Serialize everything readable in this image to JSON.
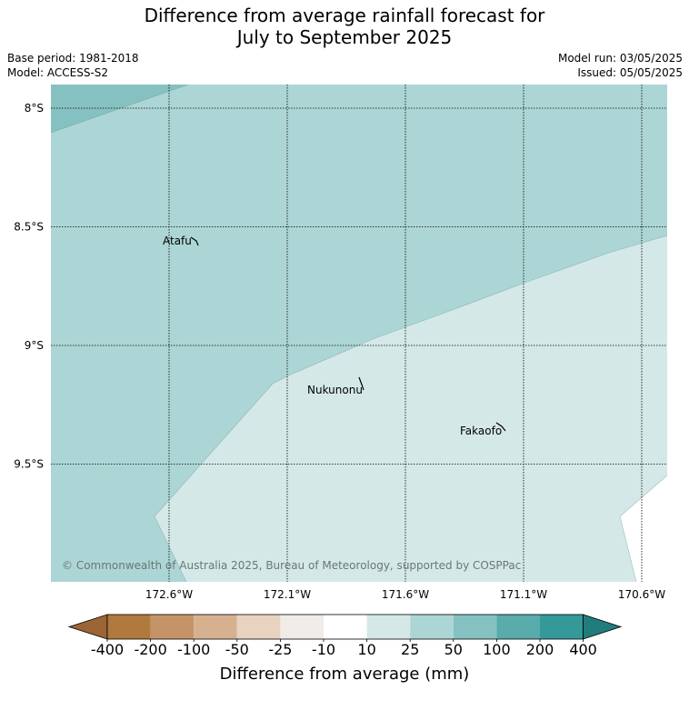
{
  "title_line1": "Difference from average rainfall forecast for",
  "title_line2": "July to September 2025",
  "meta": {
    "base_period": "Base period: 1981-2018",
    "model": "Model: ACCESS-S2",
    "model_run": "Model run: 03/05/2025",
    "issued": "Issued: 05/05/2025"
  },
  "map": {
    "lat_labels": [
      {
        "lat": -8.0,
        "label": "8°S"
      },
      {
        "lat": -8.5,
        "label": "8.5°S"
      },
      {
        "lat": -9.0,
        "label": "9°S"
      },
      {
        "lat": -9.5,
        "label": "9.5°S"
      }
    ],
    "lon_labels": [
      {
        "lon": -172.6,
        "label": "172.6°W"
      },
      {
        "lon": -172.1,
        "label": "172.1°W"
      },
      {
        "lon": -171.6,
        "label": "171.6°W"
      },
      {
        "lon": -171.1,
        "label": "171.1°W"
      },
      {
        "lon": -170.6,
        "label": "170.6°W"
      }
    ],
    "places": [
      {
        "name": "Atafu",
        "lon": -172.52,
        "lat": -8.55
      },
      {
        "name": "Nukunonu",
        "lon": -171.84,
        "lat": -9.16
      },
      {
        "name": "Fakaofo",
        "lon": -171.23,
        "lat": -9.36
      }
    ],
    "copyright": "© Commonwealth of Australia 2025, Bureau of Meteorology, supported by COSPPac"
  },
  "colorbar": {
    "title": "Difference from average (mm)",
    "tick_labels": [
      "-400",
      "-200",
      "-100",
      "-50",
      "-25",
      "-10",
      "10",
      "25",
      "50",
      "100",
      "200",
      "400"
    ],
    "colors": {
      "under": "#9c6535",
      "bins": [
        "#b07a3e",
        "#c49468",
        "#d6b190",
        "#e8d3c1",
        "#f1ece7",
        "#ffffff",
        "#d4e9e7",
        "#acd6d5",
        "#86c1c1",
        "#5aabab",
        "#35999a"
      ],
      "over": "#217c7c"
    }
  },
  "fills": {
    "band_10_25": "#d4e9e7",
    "band_25_50": "#acd6d5",
    "band_50_100": "#86c1c1"
  }
}
